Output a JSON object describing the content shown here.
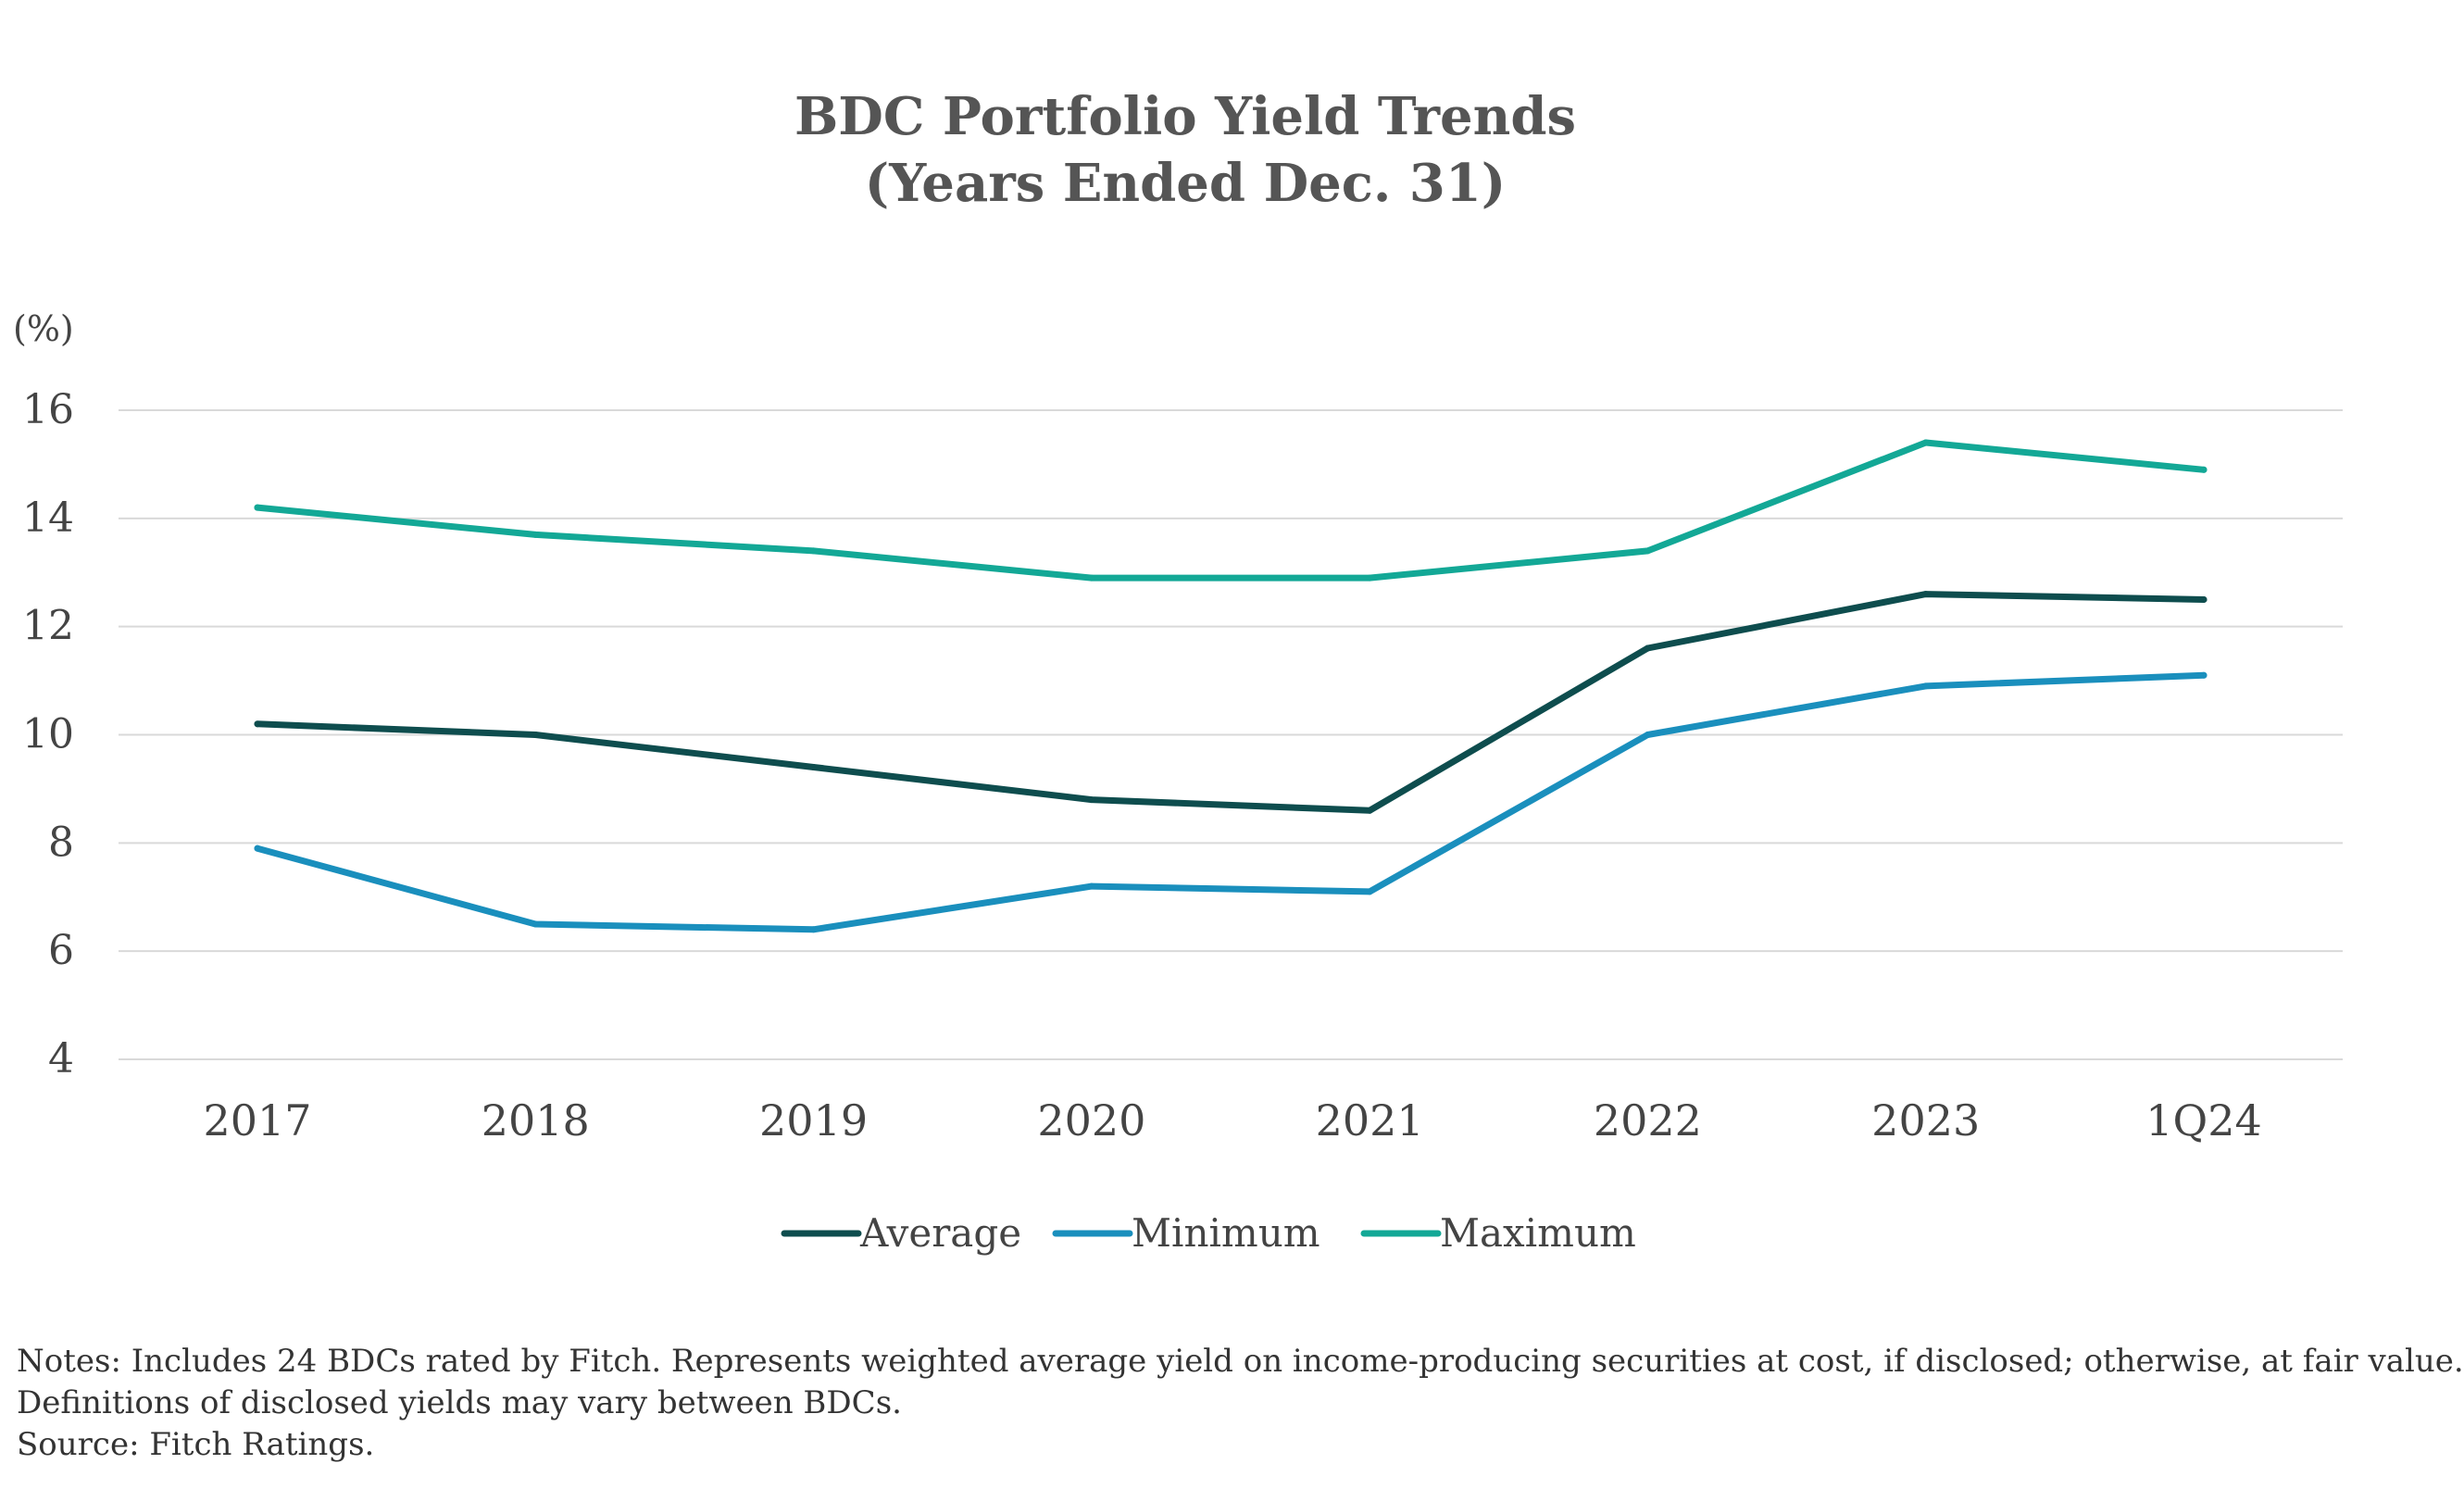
{
  "chart_data": {
    "type": "line",
    "title": "BDC Portfolio Yield Trends",
    "subtitle": "(Years Ended Dec. 31)",
    "ylabel": "(%)",
    "xlabel": "",
    "categories": [
      "2017",
      "2018",
      "2019",
      "2020",
      "2021",
      "2022",
      "2023",
      "1Q24"
    ],
    "yticks": [
      4,
      6,
      8,
      10,
      12,
      14,
      16
    ],
    "ylim": [
      4,
      16
    ],
    "grid": true,
    "legend_position": "bottom",
    "series": [
      {
        "name": "Average",
        "color": "#0e4d4e",
        "values": [
          10.2,
          10.0,
          9.4,
          8.8,
          8.6,
          11.6,
          12.6,
          12.5
        ]
      },
      {
        "name": "Minimum",
        "color": "#1a8fbd",
        "values": [
          7.9,
          6.5,
          6.4,
          7.2,
          7.1,
          10.0,
          10.9,
          11.1
        ]
      },
      {
        "name": "Maximum",
        "color": "#13a896",
        "values": [
          14.2,
          13.7,
          13.4,
          12.9,
          12.9,
          13.4,
          15.4,
          14.9
        ]
      }
    ]
  },
  "notes": {
    "line1": "Notes: Includes 24 BDCs  rated by Fitch. Represents weighted average yield on income-producing securities at cost, if disclosed; otherwise, at fair value.",
    "line2": "Definitions of disclosed yields may vary between BDCs.",
    "line3": "Source: Fitch Ratings."
  }
}
